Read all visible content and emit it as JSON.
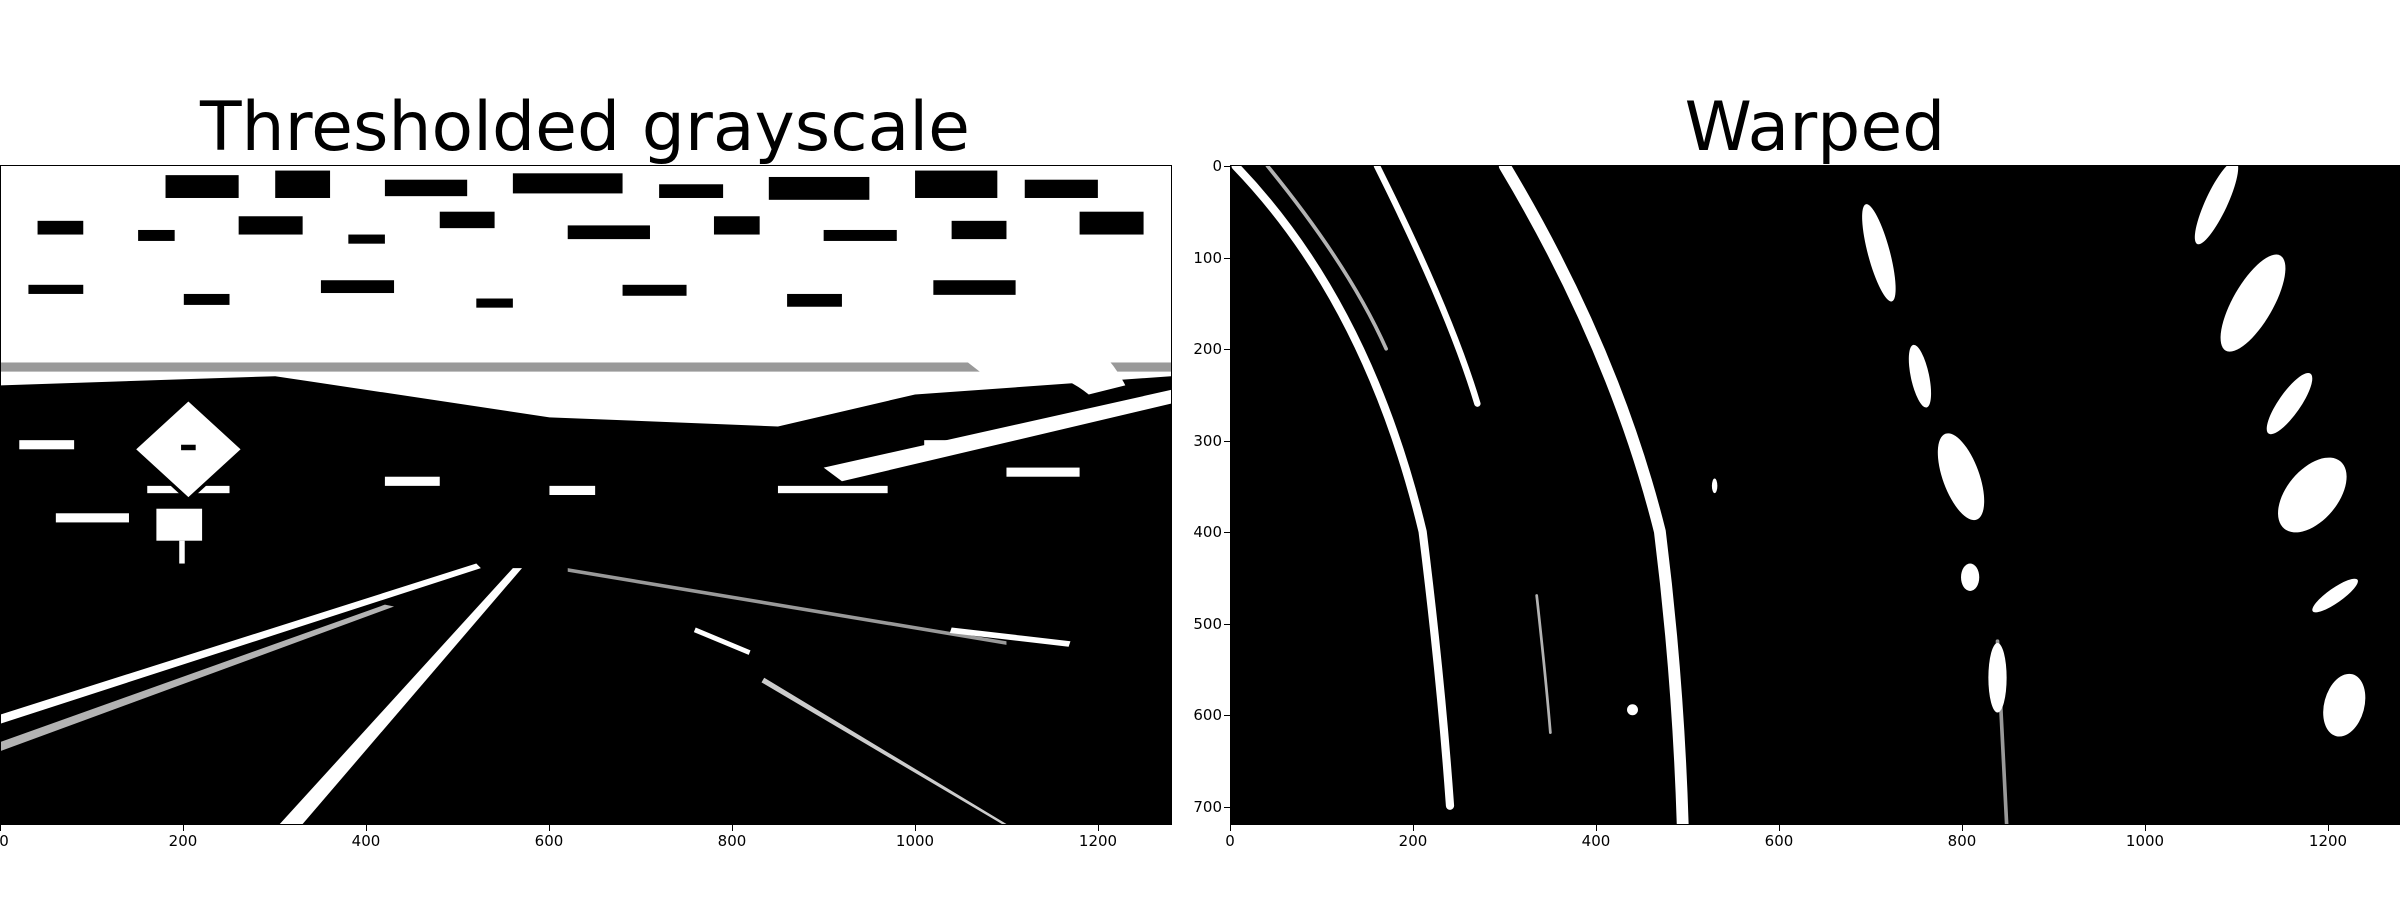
{
  "left_panel": {
    "title": "Thresholded grayscale",
    "x_ticks": [
      "0",
      "200",
      "400",
      "600",
      "800",
      "1000",
      "1200"
    ]
  },
  "right_panel": {
    "title": "Warped",
    "x_ticks": [
      "0",
      "200",
      "400",
      "600",
      "800",
      "1000",
      "1200"
    ],
    "y_ticks": [
      "0",
      "100",
      "200",
      "300",
      "400",
      "500",
      "600",
      "700"
    ]
  }
}
